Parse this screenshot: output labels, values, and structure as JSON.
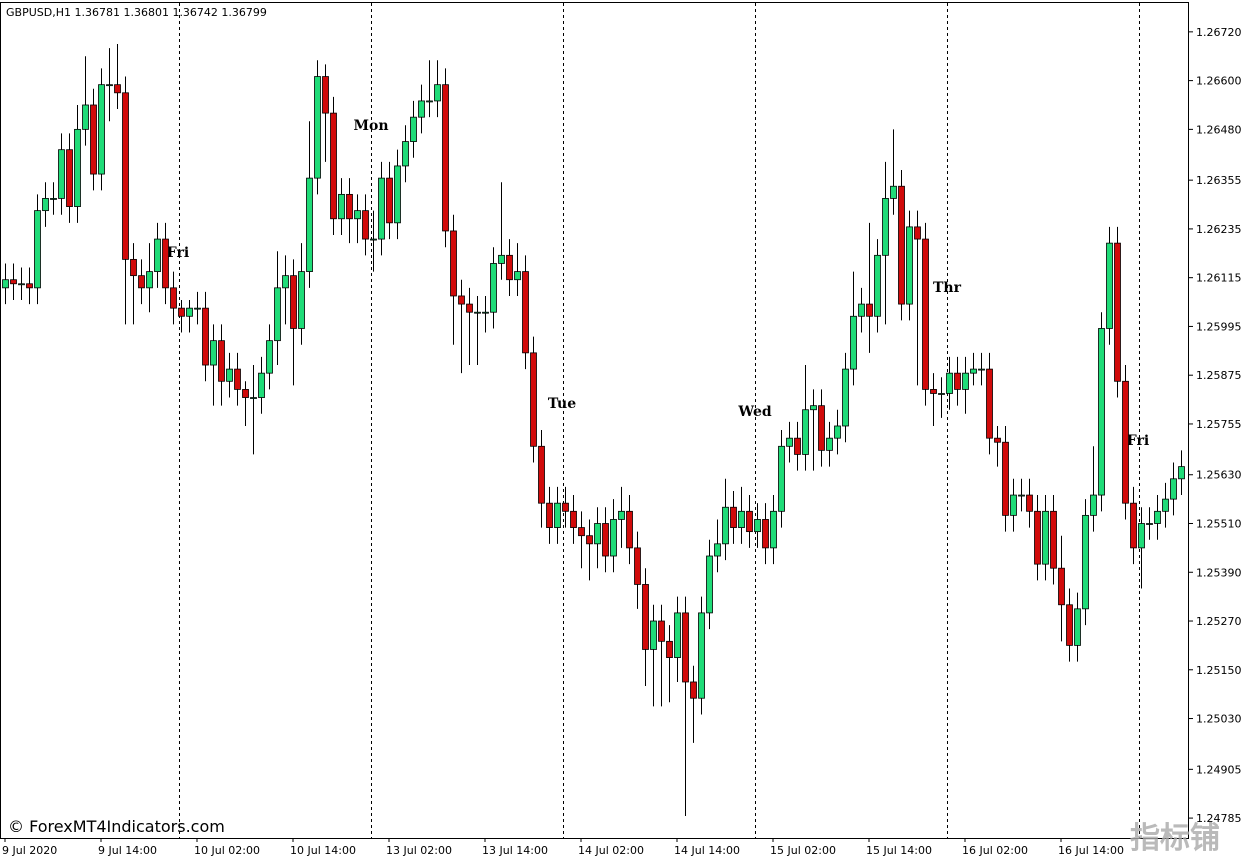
{
  "chart_data": {
    "type": "candlestick",
    "title": "GBPUSD,H1  1.36781 1.36801 1.36742 1.36799",
    "watermark": "© ForexMT4Indicators.com",
    "watermark2": "指标铺",
    "up_color": "#1fdc78",
    "down_color": "#d10a0a",
    "grid": false,
    "ylim": [
      1.24736,
      1.26791
    ],
    "yticks": [
      {
        "value": 1.2672,
        "label": "1.26720"
      },
      {
        "value": 1.266,
        "label": "1.26600"
      },
      {
        "value": 1.2648,
        "label": "1.26480"
      },
      {
        "value": 1.26355,
        "label": "1.26355"
      },
      {
        "value": 1.26235,
        "label": "1.26235"
      },
      {
        "value": 1.26115,
        "label": "1.26115"
      },
      {
        "value": 1.25995,
        "label": "1.25995"
      },
      {
        "value": 1.25875,
        "label": "1.25875"
      },
      {
        "value": 1.25755,
        "label": "1.25755"
      },
      {
        "value": 1.2563,
        "label": "1.25630"
      },
      {
        "value": 1.2551,
        "label": "1.25510"
      },
      {
        "value": 1.2539,
        "label": "1.25390"
      },
      {
        "value": 1.2527,
        "label": "1.25270"
      },
      {
        "value": 1.2515,
        "label": "1.25150"
      },
      {
        "value": 1.2503,
        "label": "1.25030"
      },
      {
        "value": 1.24905,
        "label": "1.24905"
      },
      {
        "value": 1.24785,
        "label": "1.24785"
      }
    ],
    "xlabels": [
      "9 Jul 2020",
      "9 Jul 14:00",
      "10 Jul 02:00",
      "10 Jul 14:00",
      "13 Jul 02:00",
      "13 Jul 14:00",
      "14 Jul 02:00",
      "14 Jul 14:00",
      "15 Jul 02:00",
      "15 Jul 14:00",
      "16 Jul 02:00",
      "16 Jul 14:00"
    ],
    "annotations": [
      {
        "text": "Fri",
        "color": "#ee82ee"
      },
      {
        "text": "Mon",
        "color": "#ffa500"
      },
      {
        "text": "Tue",
        "color": "#ff0000"
      },
      {
        "text": "Wed",
        "color": "#00bfff"
      },
      {
        "text": "Thr",
        "color": "#32cd32"
      },
      {
        "text": "Fri",
        "color": "#ee82ee"
      }
    ],
    "open": [
      1.2609,
      1.2611,
      1.261,
      1.261,
      1.2609,
      1.2628,
      1.2631,
      1.2631,
      1.2643,
      1.2629,
      1.2648,
      1.2654,
      1.2637,
      1.2659,
      1.2659,
      1.2657,
      1.2616,
      1.2612,
      1.2609,
      1.2613,
      1.2621,
      1.2609,
      1.2604,
      1.2602,
      1.2604,
      1.2604,
      1.259,
      1.2596,
      1.2586,
      1.2589,
      1.2584,
      1.2582,
      1.2582,
      1.2588,
      1.2596,
      1.2609,
      1.2612,
      1.2599,
      1.2613,
      1.2636,
      1.2661,
      1.2652,
      1.2626,
      1.2632,
      1.2626,
      1.2628,
      1.2621,
      1.2621,
      1.2636,
      1.2625,
      1.2639,
      1.2645,
      1.2651,
      1.2655,
      1.2655,
      1.2659,
      1.2623,
      1.2607,
      1.2605,
      1.2603,
      1.2603,
      1.2603,
      1.2615,
      1.2617,
      1.2611,
      1.2613,
      1.2593,
      1.257,
      1.2556,
      1.255,
      1.2556,
      1.2554,
      1.255,
      1.2548,
      1.2546,
      1.2551,
      1.2543,
      1.2552,
      1.2554,
      1.2545,
      1.2536,
      1.252,
      1.2527,
      1.2522,
      1.2518,
      1.2529,
      1.2512,
      1.2508,
      1.2529,
      1.2543,
      1.2546,
      1.2555,
      1.255,
      1.2554,
      1.2549,
      1.2552,
      1.2545,
      1.2554,
      1.257,
      1.2572,
      1.2568,
      1.2579,
      1.258,
      1.2569,
      1.2572,
      1.2575,
      1.2589,
      1.2602,
      1.2605,
      1.2602,
      1.2617,
      1.2631,
      1.2634,
      1.2605,
      1.2624,
      1.2621,
      1.2584,
      1.2583,
      1.2583,
      1.2588,
      1.2584,
      1.2588,
      1.2589,
      1.2589,
      1.2572,
      1.2571,
      1.2553,
      1.2558,
      1.2558,
      1.2554,
      1.2541,
      1.2554,
      1.254,
      1.2531,
      1.2521,
      1.253,
      1.2553,
      1.2558,
      1.2599,
      1.262,
      1.2586,
      1.2556,
      1.2545,
      1.2551,
      1.2551,
      1.2554,
      1.2557,
      1.2562
    ],
    "high": [
      1.2615,
      1.2615,
      1.2614,
      1.2614,
      1.2632,
      1.2635,
      1.2635,
      1.2647,
      1.2647,
      1.2654,
      1.2666,
      1.2658,
      1.2663,
      1.2668,
      1.2669,
      1.2661,
      1.262,
      1.2616,
      1.262,
      1.2625,
      1.2625,
      1.2613,
      1.2606,
      1.2606,
      1.2608,
      1.2608,
      1.26,
      1.26,
      1.2593,
      1.2593,
      1.2586,
      1.259,
      1.2592,
      1.26,
      1.2618,
      1.2617,
      1.2616,
      1.262,
      1.265,
      1.2665,
      1.2664,
      1.2656,
      1.2636,
      1.2636,
      1.2632,
      1.2632,
      1.2628,
      1.264,
      1.264,
      1.2643,
      1.2649,
      1.2655,
      1.2659,
      1.2665,
      1.2665,
      1.2663,
      1.2627,
      1.2611,
      1.2609,
      1.2607,
      1.2607,
      1.2619,
      1.2635,
      1.2621,
      1.262,
      1.2617,
      1.2597,
      1.2574,
      1.256,
      1.256,
      1.256,
      1.2558,
      1.2554,
      1.2552,
      1.2555,
      1.2555,
      1.2557,
      1.256,
      1.2558,
      1.2549,
      1.254,
      1.2531,
      1.2531,
      1.2526,
      1.2533,
      1.2533,
      1.2516,
      1.2533,
      1.2547,
      1.2552,
      1.2562,
      1.2559,
      1.256,
      1.2558,
      1.2556,
      1.2556,
      1.2558,
      1.2574,
      1.2576,
      1.2576,
      1.259,
      1.2584,
      1.2584,
      1.2576,
      1.2579,
      1.2593,
      1.2613,
      1.2609,
      1.2625,
      1.2621,
      1.264,
      1.2648,
      1.2638,
      1.2628,
      1.2628,
      1.2625,
      1.2588,
      1.2587,
      1.2592,
      1.2592,
      1.2592,
      1.2593,
      1.2593,
      1.2593,
      1.2575,
      1.2575,
      1.2562,
      1.2562,
      1.2562,
      1.2558,
      1.2558,
      1.2558,
      1.2548,
      1.2535,
      1.2534,
      1.2557,
      1.257,
      1.2603,
      1.2624,
      1.2624,
      1.259,
      1.256,
      1.2555,
      1.2555,
      1.2558,
      1.2561,
      1.2566,
      1.2569
    ],
    "low": [
      1.2605,
      1.2606,
      1.2606,
      1.2605,
      1.2605,
      1.2624,
      1.2627,
      1.2627,
      1.2625,
      1.2625,
      1.2644,
      1.2633,
      1.2633,
      1.265,
      1.2653,
      1.26,
      1.26,
      1.2605,
      1.2603,
      1.2609,
      1.2605,
      1.26,
      1.2598,
      1.2598,
      1.26,
      1.2586,
      1.258,
      1.258,
      1.2582,
      1.258,
      1.2575,
      1.2568,
      1.2578,
      1.2584,
      1.259,
      1.26,
      1.2585,
      1.2595,
      1.2609,
      1.2632,
      1.264,
      1.2622,
      1.2622,
      1.262,
      1.262,
      1.2617,
      1.2613,
      1.2617,
      1.2621,
      1.2621,
      1.2635,
      1.2641,
      1.2647,
      1.2651,
      1.2651,
      1.2619,
      1.2595,
      1.2588,
      1.259,
      1.259,
      1.2598,
      1.2599,
      1.2611,
      1.2607,
      1.2607,
      1.2589,
      1.2566,
      1.255,
      1.2546,
      1.2546,
      1.255,
      1.2546,
      1.254,
      1.2537,
      1.254,
      1.2539,
      1.2539,
      1.2545,
      1.2541,
      1.253,
      1.2511,
      1.2506,
      1.2506,
      1.2507,
      1.2512,
      1.2479,
      1.2497,
      1.2504,
      1.2525,
      1.2539,
      1.2542,
      1.2546,
      1.2546,
      1.2545,
      1.2545,
      1.2541,
      1.2541,
      1.255,
      1.2566,
      1.2564,
      1.2564,
      1.2564,
      1.2565,
      1.2565,
      1.2568,
      1.2571,
      1.2585,
      1.2598,
      1.2593,
      1.2598,
      1.26,
      1.2627,
      1.2601,
      1.2601,
      1.2585,
      1.258,
      1.2575,
      1.2577,
      1.2579,
      1.258,
      1.2578,
      1.2585,
      1.2585,
      1.2568,
      1.2565,
      1.2549,
      1.2549,
      1.2554,
      1.255,
      1.2537,
      1.2537,
      1.2536,
      1.2522,
      1.2517,
      1.2517,
      1.2526,
      1.2549,
      1.2554,
      1.2595,
      1.2582,
      1.2552,
      1.2541,
      1.2535,
      1.2547,
      1.2547,
      1.255,
      1.2553,
      1.2558
    ],
    "close": [
      1.2611,
      1.261,
      1.261,
      1.2609,
      1.2628,
      1.2631,
      1.2631,
      1.2643,
      1.2629,
      1.2648,
      1.2654,
      1.2637,
      1.2659,
      1.2659,
      1.2657,
      1.2616,
      1.2612,
      1.2609,
      1.2613,
      1.2621,
      1.2609,
      1.2604,
      1.2602,
      1.2604,
      1.2604,
      1.259,
      1.2596,
      1.2586,
      1.2589,
      1.2584,
      1.2582,
      1.2582,
      1.2588,
      1.2596,
      1.2609,
      1.2612,
      1.2599,
      1.2613,
      1.2636,
      1.2661,
      1.2652,
      1.2626,
      1.2632,
      1.2626,
      1.2628,
      1.2621,
      1.2621,
      1.2636,
      1.2625,
      1.2639,
      1.2645,
      1.2651,
      1.2655,
      1.2655,
      1.2659,
      1.2623,
      1.2607,
      1.2605,
      1.2603,
      1.2603,
      1.2603,
      1.2615,
      1.2617,
      1.2611,
      1.2613,
      1.2593,
      1.257,
      1.2556,
      1.255,
      1.2556,
      1.2554,
      1.255,
      1.2548,
      1.2546,
      1.2551,
      1.2543,
      1.2552,
      1.2554,
      1.2545,
      1.2536,
      1.252,
      1.2527,
      1.2522,
      1.2518,
      1.2529,
      1.2512,
      1.2508,
      1.2529,
      1.2543,
      1.2546,
      1.2555,
      1.255,
      1.2554,
      1.2549,
      1.2552,
      1.2545,
      1.2554,
      1.257,
      1.2572,
      1.2568,
      1.2579,
      1.258,
      1.2569,
      1.2572,
      1.2575,
      1.2589,
      1.2602,
      1.2605,
      1.2602,
      1.2617,
      1.2631,
      1.2634,
      1.2605,
      1.2624,
      1.2621,
      1.2584,
      1.2583,
      1.2583,
      1.2588,
      1.2584,
      1.2588,
      1.2589,
      1.2589,
      1.2572,
      1.2571,
      1.2553,
      1.2558,
      1.2558,
      1.2554,
      1.2541,
      1.2554,
      1.254,
      1.2531,
      1.2521,
      1.253,
      1.2553,
      1.2558,
      1.2599,
      1.262,
      1.2586,
      1.2556,
      1.2545,
      1.2551,
      1.2551,
      1.2554,
      1.2557,
      1.2562,
      1.2565
    ]
  }
}
